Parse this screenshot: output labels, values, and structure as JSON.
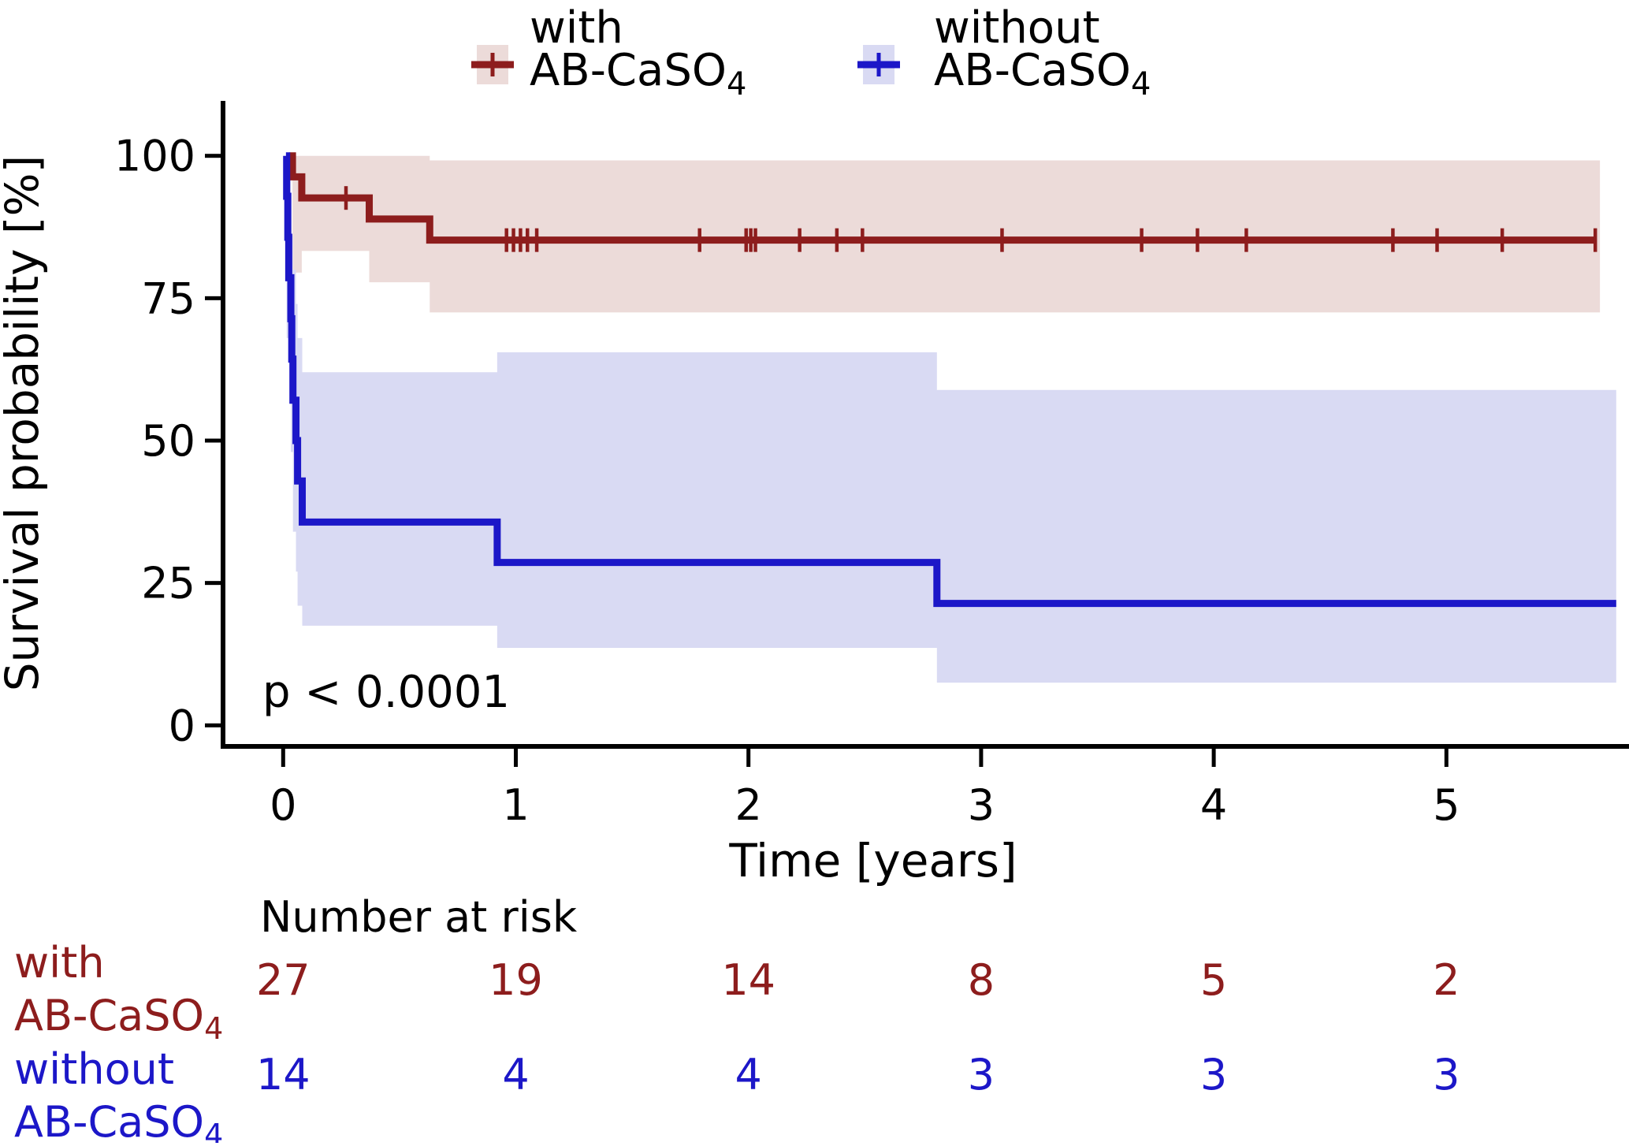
{
  "figure": {
    "background": "#ffffff",
    "axis_color": "#000000",
    "text_color": "#000000"
  },
  "chart_data": {
    "type": "line",
    "subtype": "kaplan-meier-step",
    "title": "",
    "xlabel": "Time [years]",
    "ylabel": "Survival probability [%]",
    "xlim": [
      -0.26,
      5.79
    ],
    "ylim": [
      -3.7,
      110.2
    ],
    "xticks": [
      "0",
      "1",
      "2",
      "3",
      "4",
      "5"
    ],
    "yticks": [
      "100",
      "75",
      "50",
      "25",
      "0"
    ],
    "ytick_values": [
      100,
      75,
      50,
      25,
      0
    ],
    "xtick_values": [
      0,
      1,
      2,
      3,
      4,
      5
    ],
    "grid": false,
    "legend_position": "top-center",
    "pvalue_label": "p < 0.0001",
    "series": [
      {
        "label_line1": "with",
        "label_line2_base": "AB-CaSO",
        "label_line2_sub": "4",
        "color": "#8d1d1d",
        "band_color": "#ecdbd9",
        "start_time": 0.027,
        "start_value": 100,
        "steps": [
          [
            0.04,
            96.3
          ],
          [
            0.08,
            92.6
          ],
          [
            0.37,
            88.9
          ],
          [
            0.63,
            85.2
          ]
        ],
        "line_end": 5.64,
        "censor_times": [
          0.27,
          0.96,
          0.99,
          1.02,
          1.05,
          1.09,
          1.79,
          1.99,
          2.01,
          2.03,
          2.22,
          2.38,
          2.49,
          3.09,
          3.69,
          3.93,
          4.14,
          4.77,
          4.96,
          5.24,
          5.64
        ],
        "band": [
          [
            0.04,
            79.5,
            100
          ],
          [
            0.08,
            83.3,
            100
          ],
          [
            0.37,
            77.8,
            100
          ],
          [
            0.63,
            72.5,
            99.2
          ]
        ],
        "band_end": 5.66
      },
      {
        "label_line1": "without",
        "label_line2_base": "AB-CaSO",
        "label_line2_sub": "4",
        "color": "#1c17c8",
        "band_color": "#d9daf3",
        "start_time": 0.012,
        "start_value": 100,
        "steps": [
          [
            0.015,
            92.9
          ],
          [
            0.02,
            85.7
          ],
          [
            0.024,
            78.6
          ],
          [
            0.033,
            71.4
          ],
          [
            0.037,
            64.3
          ],
          [
            0.042,
            57.1
          ],
          [
            0.055,
            50.0
          ],
          [
            0.062,
            42.9
          ],
          [
            0.082,
            35.7
          ],
          [
            0.92,
            28.6
          ],
          [
            2.81,
            21.4
          ]
        ],
        "line_end": 5.73,
        "censor_times": [],
        "band": [
          [
            0.015,
            68,
            97
          ],
          [
            0.033,
            48,
            86
          ],
          [
            0.042,
            34,
            80
          ],
          [
            0.055,
            27,
            74
          ],
          [
            0.062,
            21,
            68
          ],
          [
            0.082,
            17.5,
            62
          ],
          [
            0.92,
            13.6,
            65.5
          ],
          [
            2.81,
            7.5,
            58.9
          ]
        ],
        "band_end": 5.73
      }
    ],
    "risk_table": {
      "title": "Number at risk",
      "times": [
        0,
        1,
        2,
        3,
        4,
        5
      ],
      "rows": [
        {
          "series_index": 0,
          "values": [
            "27",
            "19",
            "14",
            "8",
            "5",
            "2"
          ]
        },
        {
          "series_index": 1,
          "values": [
            "14",
            "4",
            "4",
            "3",
            "3",
            "3"
          ]
        }
      ]
    }
  }
}
